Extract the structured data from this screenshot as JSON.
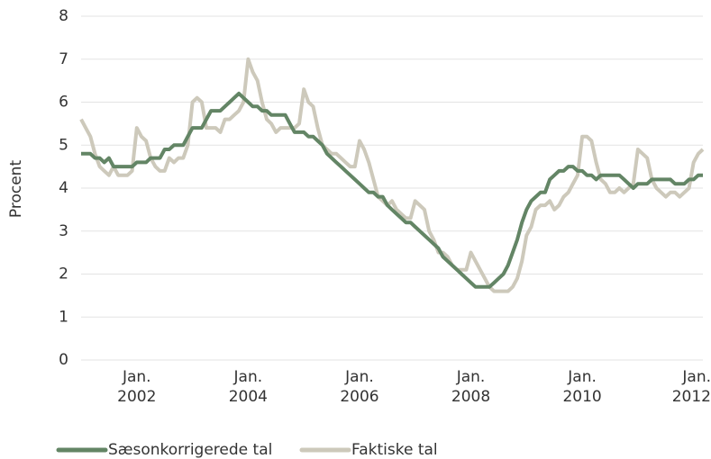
{
  "chart_data": {
    "type": "line",
    "ylabel": "Procent",
    "x": [
      "2001-01",
      "2001-02",
      "2001-03",
      "2001-04",
      "2001-05",
      "2001-06",
      "2001-07",
      "2001-08",
      "2001-09",
      "2001-10",
      "2001-11",
      "2001-12",
      "2002-01",
      "2002-02",
      "2002-03",
      "2002-04",
      "2002-05",
      "2002-06",
      "2002-07",
      "2002-08",
      "2002-09",
      "2002-10",
      "2002-11",
      "2002-12",
      "2003-01",
      "2003-02",
      "2003-03",
      "2003-04",
      "2003-05",
      "2003-06",
      "2003-07",
      "2003-08",
      "2003-09",
      "2003-10",
      "2003-11",
      "2003-12",
      "2004-01",
      "2004-02",
      "2004-03",
      "2004-04",
      "2004-05",
      "2004-06",
      "2004-07",
      "2004-08",
      "2004-09",
      "2004-10",
      "2004-11",
      "2004-12",
      "2005-01",
      "2005-02",
      "2005-03",
      "2005-04",
      "2005-05",
      "2005-06",
      "2005-07",
      "2005-08",
      "2005-09",
      "2005-10",
      "2005-11",
      "2005-12",
      "2006-01",
      "2006-02",
      "2006-03",
      "2006-04",
      "2006-05",
      "2006-06",
      "2006-07",
      "2006-08",
      "2006-09",
      "2006-10",
      "2006-11",
      "2006-12",
      "2007-01",
      "2007-02",
      "2007-03",
      "2007-04",
      "2007-05",
      "2007-06",
      "2007-07",
      "2007-08",
      "2007-09",
      "2007-10",
      "2007-11",
      "2007-12",
      "2008-01",
      "2008-02",
      "2008-03",
      "2008-04",
      "2008-05",
      "2008-06",
      "2008-07",
      "2008-08",
      "2008-09",
      "2008-10",
      "2008-11",
      "2008-12",
      "2009-01",
      "2009-02",
      "2009-03",
      "2009-04",
      "2009-05",
      "2009-06",
      "2009-07",
      "2009-08",
      "2009-09",
      "2009-10",
      "2009-11",
      "2009-12",
      "2010-01",
      "2010-02",
      "2010-03",
      "2010-04",
      "2010-05",
      "2010-06",
      "2010-07",
      "2010-08",
      "2010-09",
      "2010-10",
      "2010-11",
      "2010-12",
      "2011-01",
      "2011-02",
      "2011-03",
      "2011-04",
      "2011-05",
      "2011-06",
      "2011-07",
      "2011-08",
      "2011-09",
      "2011-10",
      "2011-11",
      "2011-12",
      "2012-01",
      "2012-02",
      "2012-03"
    ],
    "series": [
      {
        "name": "Sæsonkorrigerede tal",
        "color": "#638565",
        "values": [
          4.8,
          4.8,
          4.8,
          4.7,
          4.7,
          4.6,
          4.7,
          4.5,
          4.5,
          4.5,
          4.5,
          4.5,
          4.6,
          4.6,
          4.6,
          4.7,
          4.7,
          4.7,
          4.9,
          4.9,
          5.0,
          5.0,
          5.0,
          5.2,
          5.4,
          5.4,
          5.4,
          5.6,
          5.8,
          5.8,
          5.8,
          5.9,
          6.0,
          6.1,
          6.2,
          6.1,
          6.0,
          5.9,
          5.9,
          5.8,
          5.8,
          5.7,
          5.7,
          5.7,
          5.7,
          5.5,
          5.3,
          5.3,
          5.3,
          5.2,
          5.2,
          5.1,
          5.0,
          4.8,
          4.7,
          4.6,
          4.5,
          4.4,
          4.3,
          4.2,
          4.1,
          4.0,
          3.9,
          3.9,
          3.8,
          3.8,
          3.6,
          3.5,
          3.4,
          3.3,
          3.2,
          3.2,
          3.1,
          3.0,
          2.9,
          2.8,
          2.7,
          2.6,
          2.4,
          2.3,
          2.2,
          2.1,
          2.0,
          1.9,
          1.8,
          1.7,
          1.7,
          1.7,
          1.7,
          1.8,
          1.9,
          2.0,
          2.2,
          2.5,
          2.8,
          3.2,
          3.5,
          3.7,
          3.8,
          3.9,
          3.9,
          4.2,
          4.3,
          4.4,
          4.4,
          4.5,
          4.5,
          4.4,
          4.4,
          4.3,
          4.3,
          4.2,
          4.3,
          4.3,
          4.3,
          4.3,
          4.3,
          4.2,
          4.1,
          4.0,
          4.1,
          4.1,
          4.1,
          4.2,
          4.2,
          4.2,
          4.2,
          4.2,
          4.1,
          4.1,
          4.1,
          4.2,
          4.2,
          4.3,
          4.3
        ]
      },
      {
        "name": "Faktiske tal",
        "color": "#cdc9bb",
        "values": [
          5.6,
          5.4,
          5.2,
          4.8,
          4.5,
          4.4,
          4.3,
          4.5,
          4.3,
          4.3,
          4.3,
          4.4,
          5.4,
          5.2,
          5.1,
          4.7,
          4.5,
          4.4,
          4.4,
          4.7,
          4.6,
          4.7,
          4.7,
          5.0,
          6.0,
          6.1,
          6.0,
          5.4,
          5.4,
          5.4,
          5.3,
          5.6,
          5.6,
          5.7,
          5.8,
          6.0,
          7.0,
          6.7,
          6.5,
          6.0,
          5.6,
          5.5,
          5.3,
          5.4,
          5.4,
          5.4,
          5.4,
          5.5,
          6.3,
          6.0,
          5.9,
          5.4,
          5.0,
          4.9,
          4.8,
          4.8,
          4.7,
          4.6,
          4.5,
          4.5,
          5.1,
          4.9,
          4.6,
          4.2,
          3.8,
          3.7,
          3.6,
          3.7,
          3.5,
          3.4,
          3.3,
          3.3,
          3.7,
          3.6,
          3.5,
          3.0,
          2.8,
          2.5,
          2.5,
          2.4,
          2.2,
          2.1,
          2.1,
          2.1,
          2.5,
          2.3,
          2.1,
          1.9,
          1.7,
          1.6,
          1.6,
          1.6,
          1.6,
          1.7,
          1.9,
          2.3,
          2.9,
          3.1,
          3.5,
          3.6,
          3.6,
          3.7,
          3.5,
          3.6,
          3.8,
          3.9,
          4.1,
          4.3,
          5.2,
          5.2,
          5.1,
          4.6,
          4.2,
          4.1,
          3.9,
          3.9,
          4.0,
          3.9,
          4.0,
          4.1,
          4.9,
          4.8,
          4.7,
          4.2,
          4.0,
          3.9,
          3.8,
          3.9,
          3.9,
          3.8,
          3.9,
          4.0,
          4.6,
          4.8,
          4.9
        ]
      }
    ],
    "xticks": [
      {
        "value": "2002-01",
        "label": "Jan.\n2002"
      },
      {
        "value": "2004-01",
        "label": "Jan.\n2004"
      },
      {
        "value": "2006-01",
        "label": "Jan.\n2006"
      },
      {
        "value": "2008-01",
        "label": "Jan.\n2008"
      },
      {
        "value": "2010-01",
        "label": "Jan.\n2010"
      },
      {
        "value": "2012-01",
        "label": "Jan.\n2012"
      }
    ],
    "ylim": [
      0,
      8
    ],
    "yticks": [
      0,
      1,
      2,
      3,
      4,
      5,
      6,
      7,
      8
    ],
    "grid": true,
    "legend": "bottom"
  }
}
